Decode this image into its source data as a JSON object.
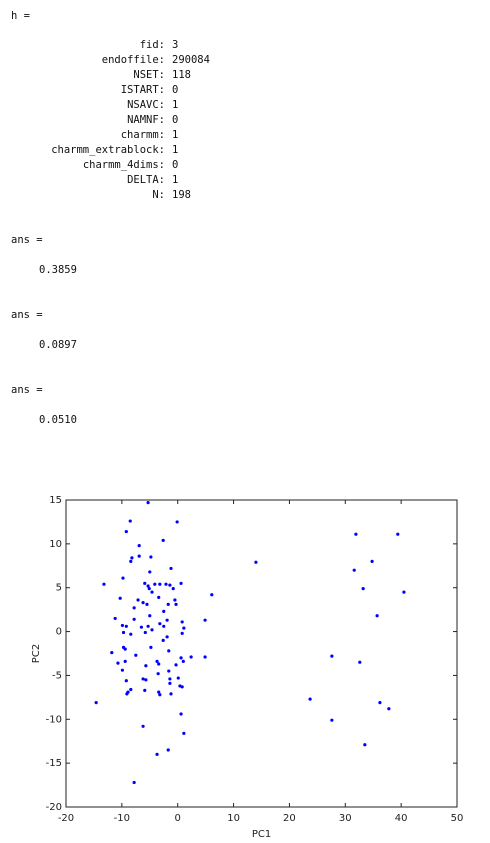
{
  "console": {
    "header": "h =",
    "fields": [
      {
        "name": "fid:",
        "value": "3"
      },
      {
        "name": "endoffile:",
        "value": "290084"
      },
      {
        "name": "NSET:",
        "value": "118"
      },
      {
        "name": "ISTART:",
        "value": "0"
      },
      {
        "name": "NSAVC:",
        "value": "1"
      },
      {
        "name": "NAMNF:",
        "value": "0"
      },
      {
        "name": "charmm:",
        "value": "1"
      },
      {
        "name": "charmm_extrablock:",
        "value": "1"
      },
      {
        "name": "charmm_4dims:",
        "value": "0"
      },
      {
        "name": "DELTA:",
        "value": "1"
      },
      {
        "name": "N:",
        "value": "198"
      }
    ],
    "answers": [
      {
        "label": "ans =",
        "value": "0.3859"
      },
      {
        "label": "ans =",
        "value": "0.0897"
      },
      {
        "label": "ans =",
        "value": "0.0510"
      }
    ]
  },
  "chart_data": {
    "type": "scatter",
    "x_label": "PC1",
    "y_label": "PC2",
    "xlim": [
      -20,
      50
    ],
    "ylim": [
      -20,
      15
    ],
    "xticks": [
      -20,
      -10,
      0,
      10,
      20,
      30,
      40,
      50
    ],
    "yticks": [
      -20,
      -15,
      -10,
      -5,
      0,
      5,
      10,
      15
    ],
    "series": [
      {
        "color": "#0000ff",
        "x": [
          -5.3,
          -8.5,
          -0.1,
          -9.2,
          -2.6,
          -6.9,
          -8.2,
          -8.4,
          -6.9,
          -4.8,
          -1.2,
          -9.8,
          -5.0,
          -13.2,
          -5.9,
          -5.3,
          -4.1,
          -3.2,
          -2.1,
          -1.4,
          0.6,
          -5.1,
          -4.6,
          -0.8,
          6.1,
          -10.3,
          -3.4,
          -6.2,
          -7.1,
          -5.5,
          -0.5,
          -1.7,
          -7.8,
          -0.3,
          -2.5,
          -11.2,
          -7.8,
          -5.0,
          -3.2,
          0.8,
          4.9,
          -1.9,
          -9.9,
          -9.2,
          -6.5,
          -5.3,
          -2.5,
          -5.8,
          -9.7,
          -4.6,
          -8.4,
          0.8,
          1.1,
          -2.6,
          -1.9,
          -9.7,
          -9.4,
          -4.8,
          -11.8,
          -1.6,
          -7.5,
          2.4,
          4.9,
          0.6,
          -9.4,
          -3.7,
          1.0,
          -10.7,
          -3.4,
          -5.7,
          -0.3,
          -9.9,
          -1.6,
          -3.5,
          -6.2,
          -5.7,
          0.1,
          -1.4,
          -9.2,
          -1.4,
          0.4,
          0.8,
          -5.9,
          -8.4,
          -8.9,
          -3.4,
          -9.1,
          -3.2,
          -1.2,
          -14.6,
          0.6,
          -6.2,
          1.1,
          -1.7,
          -3.7,
          -7.8,
          14.0,
          31.9,
          39.4,
          34.8,
          31.6,
          33.2,
          40.5,
          35.7,
          27.6,
          32.6,
          23.7,
          36.2,
          37.8,
          27.6,
          33.5
        ],
        "values": [
          14.7,
          12.6,
          12.5,
          11.4,
          10.4,
          9.8,
          8.4,
          8.0,
          8.6,
          8.5,
          7.2,
          6.1,
          6.8,
          5.4,
          5.5,
          5.2,
          5.4,
          5.4,
          5.4,
          5.3,
          5.5,
          4.9,
          4.5,
          4.9,
          4.2,
          3.8,
          3.9,
          3.3,
          3.6,
          3.1,
          3.6,
          3.1,
          2.7,
          3.1,
          2.3,
          1.5,
          1.4,
          1.8,
          0.9,
          1.1,
          1.3,
          1.3,
          0.7,
          0.6,
          0.5,
          0.6,
          0.6,
          -0.1,
          -0.1,
          0.2,
          -0.3,
          -0.2,
          0.4,
          -1.0,
          -0.6,
          -1.8,
          -2.0,
          -1.8,
          -2.4,
          -2.2,
          -2.7,
          -2.9,
          -2.9,
          -3.0,
          -3.4,
          -3.4,
          -3.4,
          -3.6,
          -3.7,
          -3.9,
          -3.8,
          -4.4,
          -4.5,
          -4.8,
          -5.4,
          -5.5,
          -5.3,
          -5.4,
          -5.6,
          -5.9,
          -6.2,
          -6.3,
          -6.7,
          -6.6,
          -6.9,
          -6.9,
          -7.1,
          -7.2,
          -7.1,
          -8.1,
          -9.4,
          -10.8,
          -11.6,
          -13.5,
          -14.0,
          -17.2,
          7.9,
          11.1,
          11.1,
          8.0,
          7.0,
          4.9,
          4.5,
          1.8,
          -2.8,
          -3.5,
          -7.7,
          -8.1,
          -8.8,
          -10.1,
          -12.9
        ]
      }
    ]
  }
}
